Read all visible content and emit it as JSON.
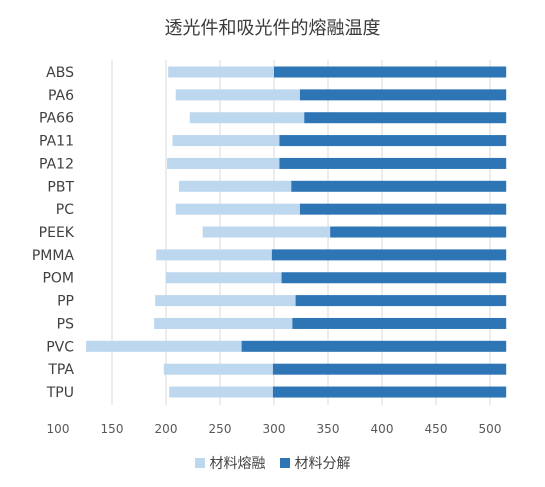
{
  "chart_data": {
    "type": "bar",
    "subtype": "stacked-horizontal-range",
    "title": "透光件和吸光件的熔融温度",
    "xlabel": "",
    "ylabel": "",
    "xlim": [
      100,
      500
    ],
    "x_ticks": [
      100,
      150,
      200,
      250,
      300,
      350,
      400,
      450,
      500
    ],
    "grid": "vertical",
    "legend_position": "bottom",
    "categories": [
      "ABS",
      "PA6",
      "PA66",
      "PA11",
      "PA12",
      "PBT",
      "PC",
      "PEEK",
      "PMMA",
      "POM",
      "PP",
      "PS",
      "PVC",
      "TPA",
      "TPU"
    ],
    "series": [
      {
        "name": "材料熔融",
        "color": "#bdd7ee",
        "start": [
          202,
          209,
          222,
          206,
          201,
          212,
          209,
          234,
          191,
          200,
          190,
          189,
          126,
          198,
          203
        ],
        "end": [
          300,
          324,
          328,
          305,
          305,
          316,
          324,
          352,
          298,
          307,
          320,
          317,
          270,
          299,
          299
        ]
      },
      {
        "name": "材料分解",
        "color": "#2e75b6",
        "start": [
          300,
          324,
          328,
          305,
          305,
          316,
          324,
          352,
          298,
          307,
          320,
          317,
          270,
          299,
          299
        ],
        "end": [
          515,
          515,
          515,
          515,
          515,
          515,
          515,
          515,
          515,
          515,
          515,
          515,
          515,
          515,
          515
        ]
      }
    ]
  }
}
